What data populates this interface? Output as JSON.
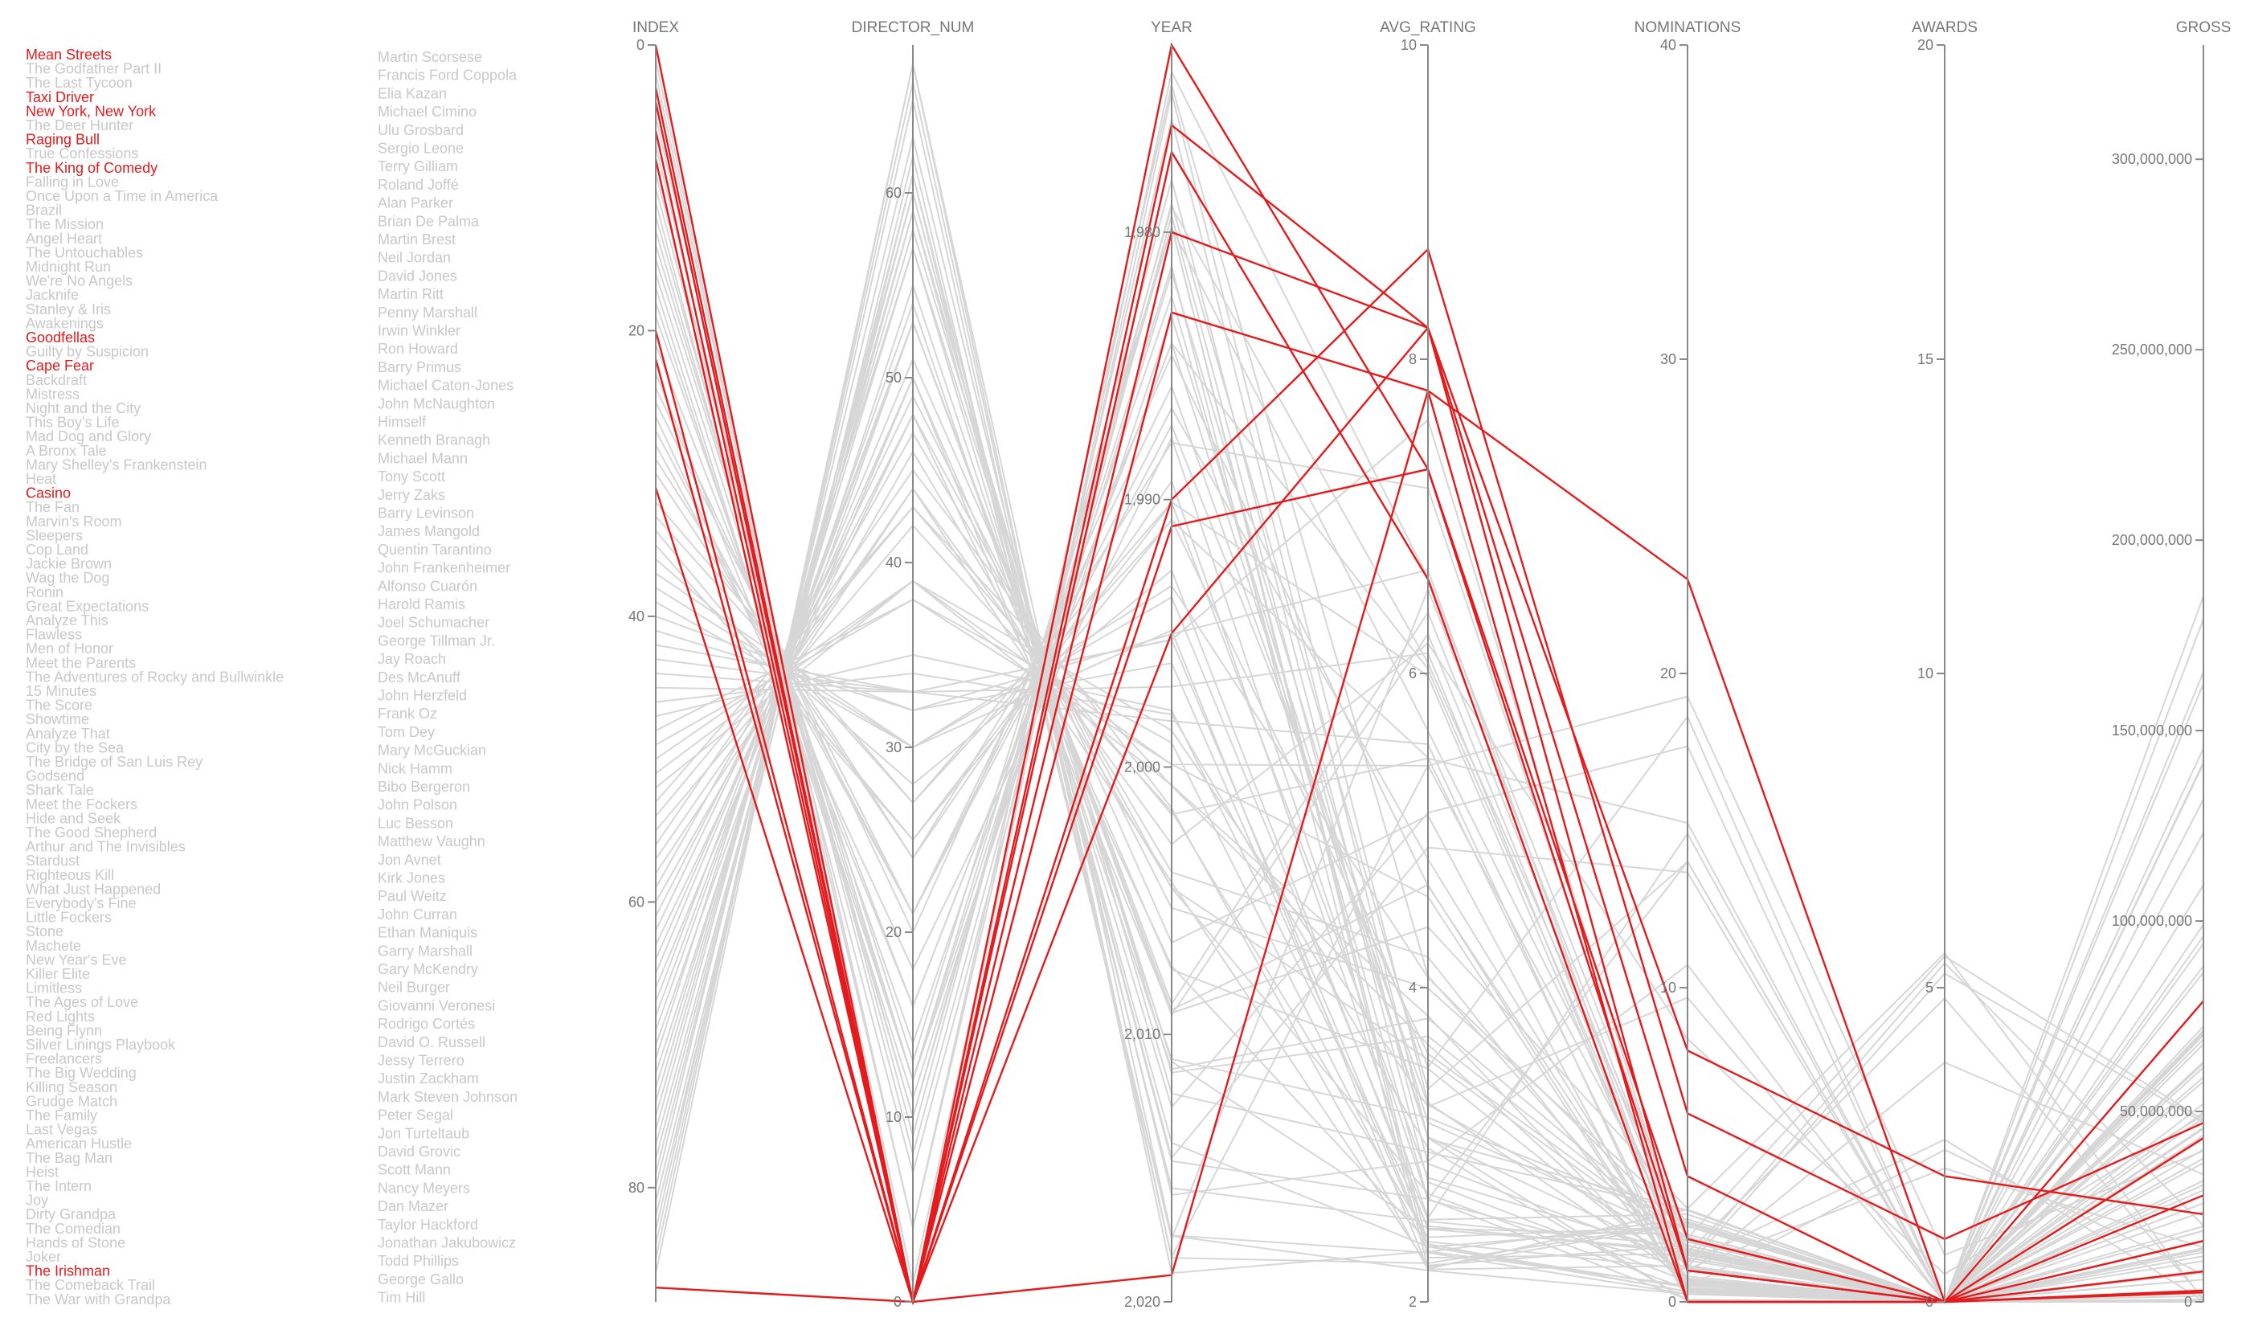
{
  "colors": {
    "highlight": "#e41a1c",
    "muted": "#d6d6d6",
    "text_muted": "#c8c8c8",
    "axis": "#888888"
  },
  "films": [
    {
      "t": "Mean Streets",
      "h": true
    },
    {
      "t": "The Godfather Part II",
      "h": false
    },
    {
      "t": "The Last Tycoon",
      "h": false
    },
    {
      "t": "Taxi Driver",
      "h": true
    },
    {
      "t": "New York, New York",
      "h": true
    },
    {
      "t": "The Deer Hunter",
      "h": false
    },
    {
      "t": "Raging Bull",
      "h": true
    },
    {
      "t": "True Confessions",
      "h": false
    },
    {
      "t": "The King of Comedy",
      "h": true
    },
    {
      "t": "Falling in Love",
      "h": false
    },
    {
      "t": "Once Upon a Time in America",
      "h": false
    },
    {
      "t": "Brazil",
      "h": false
    },
    {
      "t": "The Mission",
      "h": false
    },
    {
      "t": "Angel Heart",
      "h": false
    },
    {
      "t": "The Untouchables",
      "h": false
    },
    {
      "t": "Midnight Run",
      "h": false
    },
    {
      "t": "We're No Angels",
      "h": false
    },
    {
      "t": "Jacknife",
      "h": false
    },
    {
      "t": "Stanley & Iris",
      "h": false
    },
    {
      "t": "Awakenings",
      "h": false
    },
    {
      "t": "Goodfellas",
      "h": true
    },
    {
      "t": "Guilty by Suspicion",
      "h": false
    },
    {
      "t": "Cape Fear",
      "h": true
    },
    {
      "t": "Backdraft",
      "h": false
    },
    {
      "t": "Mistress",
      "h": false
    },
    {
      "t": "Night and the City",
      "h": false
    },
    {
      "t": "This Boy's Life",
      "h": false
    },
    {
      "t": "Mad Dog and Glory",
      "h": false
    },
    {
      "t": "A Bronx Tale",
      "h": false
    },
    {
      "t": "Mary Shelley's Frankenstein",
      "h": false
    },
    {
      "t": "Heat",
      "h": false
    },
    {
      "t": "Casino",
      "h": true
    },
    {
      "t": "The Fan",
      "h": false
    },
    {
      "t": "Marvin's Room",
      "h": false
    },
    {
      "t": "Sleepers",
      "h": false
    },
    {
      "t": "Cop Land",
      "h": false
    },
    {
      "t": "Jackie Brown",
      "h": false
    },
    {
      "t": "Wag the Dog",
      "h": false
    },
    {
      "t": "Ronin",
      "h": false
    },
    {
      "t": "Great Expectations",
      "h": false
    },
    {
      "t": "Analyze This",
      "h": false
    },
    {
      "t": "Flawless",
      "h": false
    },
    {
      "t": "Men of Honor",
      "h": false
    },
    {
      "t": "Meet the Parents",
      "h": false
    },
    {
      "t": "The Adventures of Rocky and Bullwinkle",
      "h": false
    },
    {
      "t": "15 Minutes",
      "h": false
    },
    {
      "t": "The Score",
      "h": false
    },
    {
      "t": "Showtime",
      "h": false
    },
    {
      "t": "Analyze That",
      "h": false
    },
    {
      "t": "City by the Sea",
      "h": false
    },
    {
      "t": "The Bridge of San Luis Rey",
      "h": false
    },
    {
      "t": "Godsend",
      "h": false
    },
    {
      "t": "Shark Tale",
      "h": false
    },
    {
      "t": "Meet the Fockers",
      "h": false
    },
    {
      "t": "Hide and Seek",
      "h": false
    },
    {
      "t": "The Good Shepherd",
      "h": false
    },
    {
      "t": "Arthur and The Invisibles",
      "h": false
    },
    {
      "t": "Stardust",
      "h": false
    },
    {
      "t": "Righteous Kill",
      "h": false
    },
    {
      "t": "What Just Happened",
      "h": false
    },
    {
      "t": "Everybody's Fine",
      "h": false
    },
    {
      "t": "Little Fockers",
      "h": false
    },
    {
      "t": "Stone",
      "h": false
    },
    {
      "t": "Machete",
      "h": false
    },
    {
      "t": "New Year's Eve",
      "h": false
    },
    {
      "t": "Killer Elite",
      "h": false
    },
    {
      "t": "Limitless",
      "h": false
    },
    {
      "t": "The Ages of Love",
      "h": false
    },
    {
      "t": "Red Lights",
      "h": false
    },
    {
      "t": "Being Flynn",
      "h": false
    },
    {
      "t": "Silver Linings Playbook",
      "h": false
    },
    {
      "t": "Freelancers",
      "h": false
    },
    {
      "t": "The Big Wedding",
      "h": false
    },
    {
      "t": "Killing Season",
      "h": false
    },
    {
      "t": "Grudge Match",
      "h": false
    },
    {
      "t": "The Family",
      "h": false
    },
    {
      "t": "Last Vegas",
      "h": false
    },
    {
      "t": "American Hustle",
      "h": false
    },
    {
      "t": "The Bag Man",
      "h": false
    },
    {
      "t": "Heist",
      "h": false
    },
    {
      "t": "The Intern",
      "h": false
    },
    {
      "t": "Joy",
      "h": false
    },
    {
      "t": "Dirty Grandpa",
      "h": false
    },
    {
      "t": "The Comedian",
      "h": false
    },
    {
      "t": "Hands of Stone",
      "h": false
    },
    {
      "t": "Joker",
      "h": false
    },
    {
      "t": "The Irishman",
      "h": true
    },
    {
      "t": "The Comeback Trail",
      "h": false
    },
    {
      "t": "The War with Grandpa",
      "h": false
    }
  ],
  "directors": [
    "Martin Scorsese",
    "Francis Ford Coppola",
    "Elia Kazan",
    "Michael Cimino",
    "Ulu Grosbard",
    "Sergio Leone",
    "Terry Gilliam",
    "Roland Joffé",
    "Alan Parker",
    "Brian De Palma",
    "Martin Brest",
    "Neil Jordan",
    "David Jones",
    "Martin Ritt",
    "Penny Marshall",
    "Irwin Winkler",
    "Ron Howard",
    "Barry Primus",
    "Michael Caton-Jones",
    "John McNaughton",
    "Himself",
    "Kenneth Branagh",
    "Michael Mann",
    "Tony Scott",
    "Jerry Zaks",
    "Barry Levinson",
    "James Mangold",
    "Quentin Tarantino",
    "John Frankenheimer",
    "Alfonso Cuarón",
    "Harold Ramis",
    "Joel Schumacher",
    "George Tillman Jr.",
    "Jay Roach",
    "Des McAnuff",
    "John Herzfeld",
    "Frank Oz",
    "Tom Dey",
    "Mary McGuckian",
    "Nick Hamm",
    "Bibo Bergeron",
    "John Polson",
    "Luc Besson",
    "Matthew Vaughn",
    "Jon Avnet",
    "Kirk Jones",
    "Paul Weitz",
    "John Curran",
    "Ethan Maniquis",
    "Garry Marshall",
    "Gary McKendry",
    "Neil Burger",
    "Giovanni Veronesi",
    "Rodrigo Cortés",
    "David O. Russell",
    "Jessy Terrero",
    "Justin Zackham",
    "Mark Steven Johnson",
    "Peter Segal",
    "Jon Turteltaub",
    "David Grovic",
    "Scott Mann",
    "Nancy Meyers",
    "Dan Mazer",
    "Taylor Hackford",
    "Jonathan Jakubowicz",
    "Todd Phillips",
    "George Gallo",
    "Tim Hill"
  ],
  "chart_data": {
    "type": "parallel_coordinates",
    "axes": [
      {
        "name": "INDEX",
        "domain": [
          0,
          88
        ],
        "ticks": [
          {
            "v": 0,
            "l": "0"
          },
          {
            "v": 20,
            "l": "20"
          },
          {
            "v": 40,
            "l": "40"
          },
          {
            "v": 60,
            "l": "60"
          },
          {
            "v": 80,
            "l": "80"
          }
        ]
      },
      {
        "name": "DIRECTOR_NUM",
        "domain": [
          68,
          0
        ],
        "ticks": [
          {
            "v": 60,
            "l": "60"
          },
          {
            "v": 50,
            "l": "50"
          },
          {
            "v": 40,
            "l": "40"
          },
          {
            "v": 30,
            "l": "30"
          },
          {
            "v": 20,
            "l": "20"
          },
          {
            "v": 10,
            "l": "10"
          },
          {
            "v": 0,
            "l": "0"
          }
        ]
      },
      {
        "name": "YEAR",
        "domain": [
          1973,
          2020
        ],
        "ticks": [
          {
            "v": 1980,
            "l": "1,980"
          },
          {
            "v": 1990,
            "l": "1,990"
          },
          {
            "v": 2000,
            "l": "2,000"
          },
          {
            "v": 2010,
            "l": "2,010"
          },
          {
            "v": 2020,
            "l": "2,020"
          }
        ]
      },
      {
        "name": "AVG_RATING",
        "domain": [
          10,
          2
        ],
        "ticks": [
          {
            "v": 10,
            "l": "10"
          },
          {
            "v": 8,
            "l": "8"
          },
          {
            "v": 6,
            "l": "6"
          },
          {
            "v": 4,
            "l": "4"
          },
          {
            "v": 2,
            "l": "2"
          }
        ]
      },
      {
        "name": "NOMINATIONS",
        "domain": [
          40,
          0
        ],
        "ticks": [
          {
            "v": 40,
            "l": "40"
          },
          {
            "v": 30,
            "l": "30"
          },
          {
            "v": 20,
            "l": "20"
          },
          {
            "v": 10,
            "l": "10"
          },
          {
            "v": 0,
            "l": "0"
          }
        ]
      },
      {
        "name": "AWARDS",
        "domain": [
          20,
          0
        ],
        "ticks": [
          {
            "v": 20,
            "l": "20"
          },
          {
            "v": 15,
            "l": "15"
          },
          {
            "v": 10,
            "l": "10"
          },
          {
            "v": 5,
            "l": "5"
          },
          {
            "v": 0,
            "l": "0"
          }
        ]
      },
      {
        "name": "GROSS",
        "domain": [
          330000000,
          0
        ],
        "ticks": [
          {
            "v": 300000000,
            "l": "300,000,000"
          },
          {
            "v": 250000000,
            "l": "250,000,000"
          },
          {
            "v": 200000000,
            "l": "200,000,000"
          },
          {
            "v": 150000000,
            "l": "150,000,000"
          },
          {
            "v": 100000000,
            "l": "100,000,000"
          },
          {
            "v": 50000000,
            "l": "50,000,000"
          },
          {
            "v": 0,
            "l": "0"
          }
        ]
      }
    ],
    "highlighted_films": [
      {
        "title": "Mean Streets",
        "values": [
          0,
          0,
          1973,
          7.3,
          1,
          0,
          3000000
        ]
      },
      {
        "title": "Taxi Driver",
        "values": [
          3,
          0,
          1976,
          8.2,
          4,
          0,
          28000000
        ]
      },
      {
        "title": "New York, New York",
        "values": [
          4,
          0,
          1977,
          6.6,
          0,
          0,
          16000000
        ]
      },
      {
        "title": "Raging Bull",
        "values": [
          6,
          0,
          1980,
          8.2,
          8,
          2,
          23000000
        ]
      },
      {
        "title": "The King of Comedy",
        "values": [
          8,
          0,
          1983,
          7.8,
          0,
          0,
          2500000
        ]
      },
      {
        "title": "Goodfellas",
        "values": [
          20,
          0,
          1990,
          8.7,
          6,
          1,
          47000000
        ]
      },
      {
        "title": "Cape Fear",
        "values": [
          22,
          0,
          1991,
          7.3,
          2,
          0,
          79000000
        ]
      },
      {
        "title": "Casino",
        "values": [
          31,
          0,
          1995,
          8.2,
          1,
          0,
          43000000
        ]
      },
      {
        "title": "The Irishman",
        "values": [
          87,
          0,
          2019,
          7.8,
          23,
          0,
          8000000
        ]
      }
    ]
  }
}
